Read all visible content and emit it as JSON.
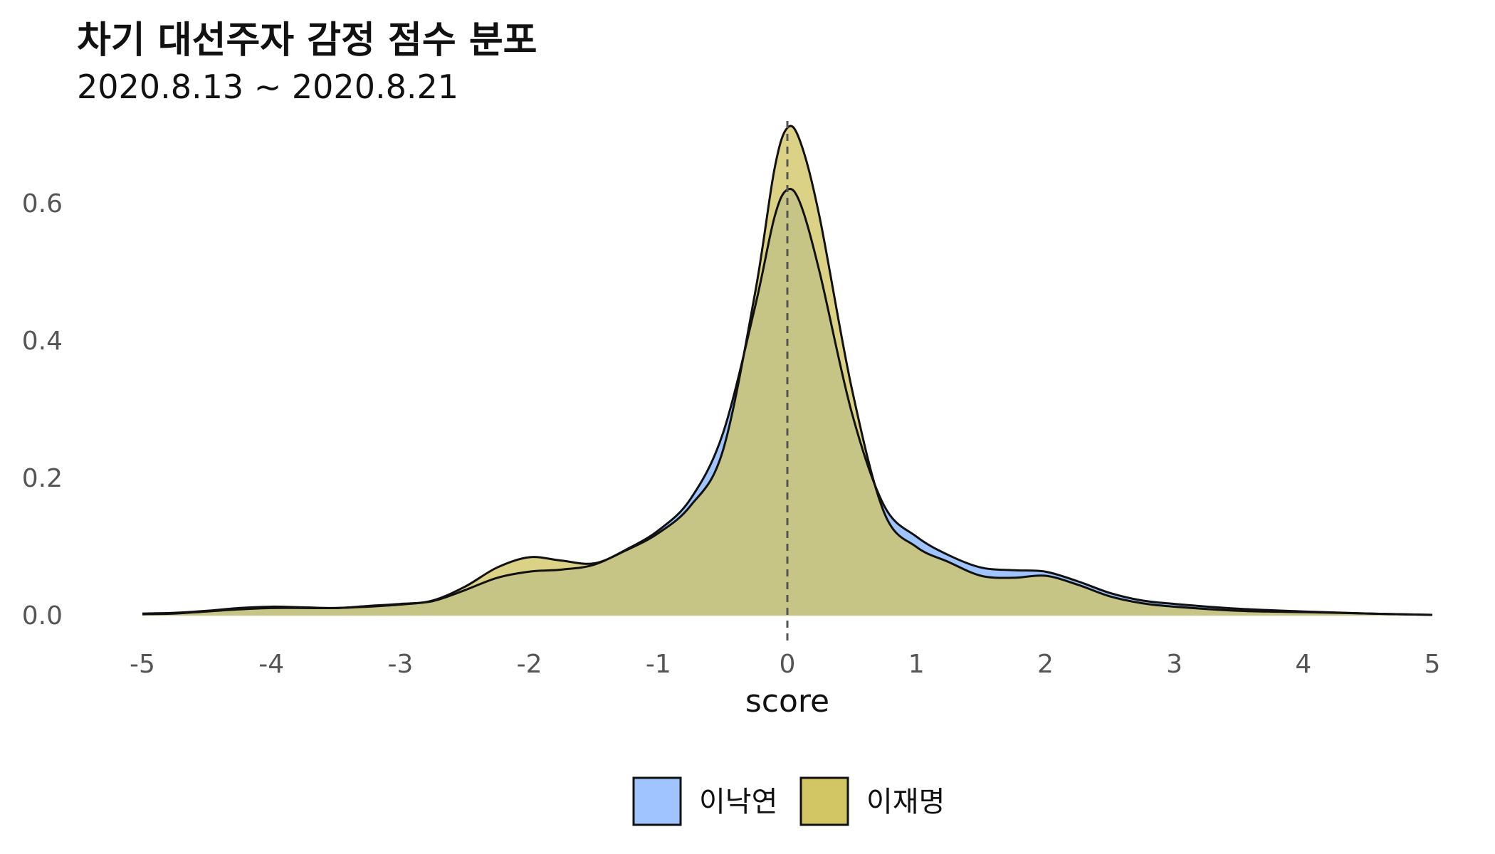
{
  "chart_data": {
    "type": "area",
    "title": "차기 대선주자 감정 점수 분포",
    "subtitle": "2020.8.13 ~ 2020.8.21",
    "xlabel": "score",
    "ylabel": "",
    "xlim": [
      -5,
      5
    ],
    "ylim": [
      0,
      0.72
    ],
    "x_ticks": [
      "-5",
      "-4",
      "-3",
      "-2",
      "-1",
      "0",
      "1",
      "2",
      "3",
      "4",
      "5"
    ],
    "y_ticks": [
      "0.0",
      "0.2",
      "0.4",
      "0.6"
    ],
    "grid": false,
    "legend_position": "bottom",
    "reference_line": {
      "x": 0,
      "style": "dashed"
    },
    "series": [
      {
        "name": "이낙연",
        "color": "#a0c4ff",
        "points": [
          [
            -5,
            0.003
          ],
          [
            -4.75,
            0.004
          ],
          [
            -4.5,
            0.007
          ],
          [
            -4.25,
            0.011
          ],
          [
            -4,
            0.013
          ],
          [
            -3.75,
            0.012
          ],
          [
            -3.5,
            0.011
          ],
          [
            -3.25,
            0.014
          ],
          [
            -3,
            0.017
          ],
          [
            -2.75,
            0.021
          ],
          [
            -2.5,
            0.037
          ],
          [
            -2.25,
            0.055
          ],
          [
            -2,
            0.064
          ],
          [
            -1.75,
            0.067
          ],
          [
            -1.5,
            0.074
          ],
          [
            -1.25,
            0.096
          ],
          [
            -1,
            0.124
          ],
          [
            -0.75,
            0.17
          ],
          [
            -0.5,
            0.265
          ],
          [
            -0.25,
            0.45
          ],
          [
            -0.1,
            0.58
          ],
          [
            0,
            0.62
          ],
          [
            0.1,
            0.6
          ],
          [
            0.25,
            0.5
          ],
          [
            0.5,
            0.295
          ],
          [
            0.75,
            0.16
          ],
          [
            1,
            0.115
          ],
          [
            1.25,
            0.088
          ],
          [
            1.5,
            0.07
          ],
          [
            1.75,
            0.066
          ],
          [
            2,
            0.064
          ],
          [
            2.25,
            0.05
          ],
          [
            2.5,
            0.033
          ],
          [
            2.75,
            0.022
          ],
          [
            3,
            0.017
          ],
          [
            3.5,
            0.01
          ],
          [
            4,
            0.006
          ],
          [
            4.5,
            0.003
          ],
          [
            5,
            0.001
          ]
        ]
      },
      {
        "name": "이재명",
        "color": "#d1c564",
        "points": [
          [
            -5,
            0.002
          ],
          [
            -4.75,
            0.003
          ],
          [
            -4.5,
            0.006
          ],
          [
            -4.25,
            0.009
          ],
          [
            -4,
            0.011
          ],
          [
            -3.75,
            0.011
          ],
          [
            -3.5,
            0.011
          ],
          [
            -3.25,
            0.013
          ],
          [
            -3,
            0.016
          ],
          [
            -2.75,
            0.022
          ],
          [
            -2.5,
            0.042
          ],
          [
            -2.25,
            0.07
          ],
          [
            -2,
            0.085
          ],
          [
            -1.75,
            0.08
          ],
          [
            -1.5,
            0.076
          ],
          [
            -1.25,
            0.095
          ],
          [
            -1,
            0.12
          ],
          [
            -0.75,
            0.16
          ],
          [
            -0.5,
            0.24
          ],
          [
            -0.25,
            0.47
          ],
          [
            -0.1,
            0.65
          ],
          [
            0,
            0.71
          ],
          [
            0.1,
            0.69
          ],
          [
            0.25,
            0.58
          ],
          [
            0.5,
            0.33
          ],
          [
            0.75,
            0.15
          ],
          [
            1,
            0.1
          ],
          [
            1.25,
            0.078
          ],
          [
            1.5,
            0.058
          ],
          [
            1.75,
            0.055
          ],
          [
            2,
            0.058
          ],
          [
            2.25,
            0.045
          ],
          [
            2.5,
            0.028
          ],
          [
            2.75,
            0.018
          ],
          [
            3,
            0.013
          ],
          [
            3.5,
            0.007
          ],
          [
            4,
            0.005
          ],
          [
            4.5,
            0.003
          ],
          [
            5,
            0.001
          ]
        ]
      }
    ]
  }
}
